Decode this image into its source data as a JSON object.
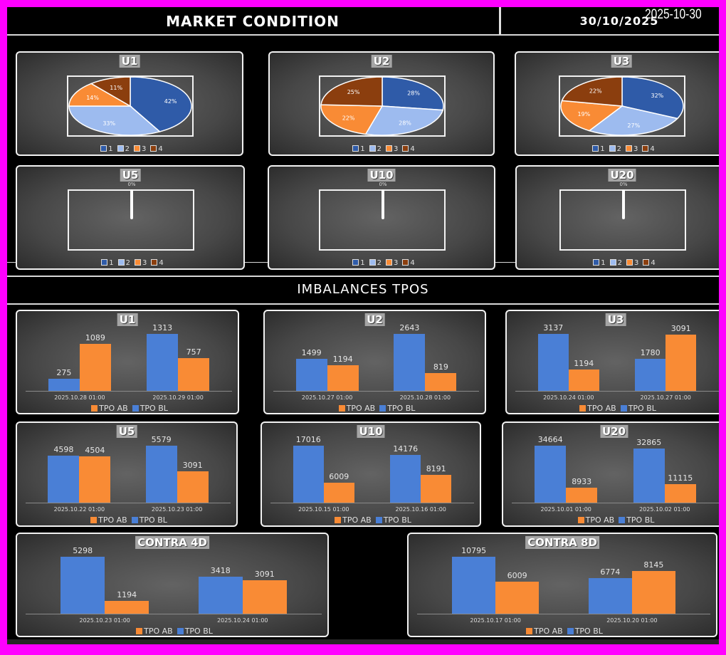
{
  "header": {
    "title": "MARKET CONDITION",
    "date": "30/10/2025",
    "overlay_date": "2025-10-30"
  },
  "section2": {
    "title": "IMBALANCES TPOS"
  },
  "colors": {
    "slice1": "#2f5ba8",
    "slice2": "#9dbbef",
    "slice3": "#f98b35",
    "slice4": "#8b3e0e",
    "tpo_bl": "#4a7fd6",
    "tpo_ab": "#f98b35",
    "background": "#000000",
    "frame": "#ff00ff"
  },
  "pie_legend": [
    "1",
    "2",
    "3",
    "4"
  ],
  "bar_legend": {
    "ab": "TPO AB",
    "bl": "TPO BL"
  },
  "chart_data": [
    {
      "type": "pie",
      "title": "U1",
      "categories": [
        "1",
        "2",
        "3",
        "4"
      ],
      "values": [
        42,
        33,
        14,
        11
      ],
      "labels": [
        "42%",
        "33%",
        "14%",
        "11%"
      ]
    },
    {
      "type": "pie",
      "title": "U2",
      "categories": [
        "1",
        "2",
        "3",
        "4"
      ],
      "values": [
        28,
        28,
        22,
        25
      ],
      "labels": [
        "28%",
        "28%",
        "22%",
        "25%"
      ]
    },
    {
      "type": "pie",
      "title": "U3",
      "categories": [
        "1",
        "2",
        "3",
        "4"
      ],
      "values": [
        32,
        27,
        19,
        22
      ],
      "labels": [
        "32%",
        "27%",
        "19%",
        "22%"
      ]
    },
    {
      "type": "pie",
      "title": "U5",
      "categories": [
        "1",
        "2",
        "3",
        "4"
      ],
      "values": [
        0,
        0,
        0,
        0
      ],
      "labels": [
        "0%"
      ]
    },
    {
      "type": "pie",
      "title": "U10",
      "categories": [
        "1",
        "2",
        "3",
        "4"
      ],
      "values": [
        0,
        0,
        0,
        0
      ],
      "labels": [
        "0%"
      ]
    },
    {
      "type": "pie",
      "title": "U20",
      "categories": [
        "1",
        "2",
        "3",
        "4"
      ],
      "values": [
        0,
        0,
        0,
        0
      ],
      "labels": [
        "0%"
      ]
    },
    {
      "type": "bar",
      "title": "U1",
      "categories": [
        "2025.10.28 01:00",
        "2025.10.29 01:00"
      ],
      "series": [
        {
          "name": "TPO BL",
          "values": [
            275,
            1313
          ]
        },
        {
          "name": "TPO AB",
          "values": [
            1089,
            757
          ]
        }
      ]
    },
    {
      "type": "bar",
      "title": "U2",
      "categories": [
        "2025.10.27 01:00",
        "2025.10.28 01:00"
      ],
      "series": [
        {
          "name": "TPO BL",
          "values": [
            1499,
            2643
          ]
        },
        {
          "name": "TPO AB",
          "values": [
            1194,
            819
          ]
        }
      ]
    },
    {
      "type": "bar",
      "title": "U3",
      "categories": [
        "2025.10.24 01:00",
        "2025.10.27 01:00"
      ],
      "series": [
        {
          "name": "TPO BL",
          "values": [
            3137,
            1780
          ]
        },
        {
          "name": "TPO AB",
          "values": [
            1194,
            3091
          ]
        }
      ]
    },
    {
      "type": "bar",
      "title": "U5",
      "categories": [
        "2025.10.22 01:00",
        "2025.10.23 01:00"
      ],
      "series": [
        {
          "name": "TPO BL",
          "values": [
            4598,
            5579
          ]
        },
        {
          "name": "TPO AB",
          "values": [
            4504,
            3091
          ]
        }
      ]
    },
    {
      "type": "bar",
      "title": "U10",
      "categories": [
        "2025.10.15 01:00",
        "2025.10.16 01:00"
      ],
      "series": [
        {
          "name": "TPO BL",
          "values": [
            17016,
            14176
          ]
        },
        {
          "name": "TPO AB",
          "values": [
            6009,
            8191
          ]
        }
      ]
    },
    {
      "type": "bar",
      "title": "U20",
      "categories": [
        "2025.10.01 01:00",
        "2025.10.02 01:00"
      ],
      "series": [
        {
          "name": "TPO BL",
          "values": [
            34664,
            32865
          ]
        },
        {
          "name": "TPO AB",
          "values": [
            8933,
            11115
          ]
        }
      ]
    },
    {
      "type": "bar",
      "title": "CONTRA 4D",
      "categories": [
        "2025.10.23 01:00",
        "2025.10.24 01:00"
      ],
      "series": [
        {
          "name": "TPO BL",
          "values": [
            5298,
            3418
          ]
        },
        {
          "name": "TPO AB",
          "values": [
            1194,
            3091
          ]
        }
      ]
    },
    {
      "type": "bar",
      "title": "CONTRA 8D",
      "categories": [
        "2025.10.17 01:00",
        "2025.10.20 01:00"
      ],
      "series": [
        {
          "name": "TPO BL",
          "values": [
            10795,
            6774
          ]
        },
        {
          "name": "TPO AB",
          "values": [
            6009,
            8145
          ]
        }
      ]
    }
  ]
}
